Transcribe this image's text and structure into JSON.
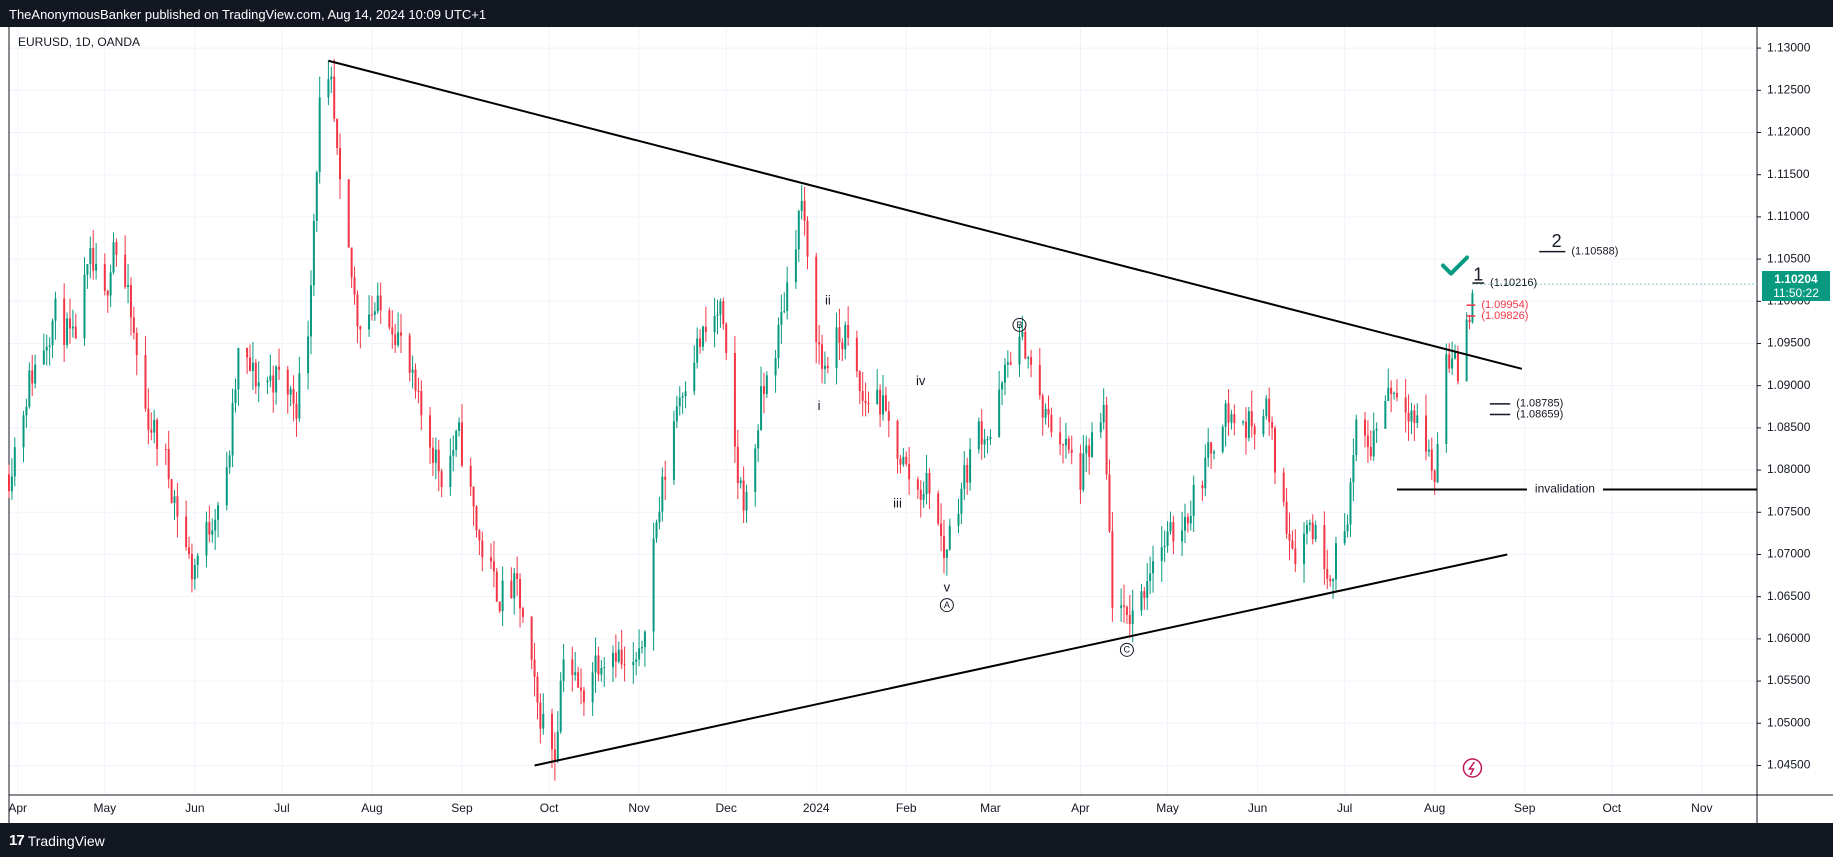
{
  "header": {
    "published_text": "TheAnonymousBanker published on TradingView.com, Aug 14, 2024 10:09 UTC+1"
  },
  "footer": {
    "logo_mark": "17",
    "logo_text": "TradingView"
  },
  "symbol_label": "EURUSD, 1D, OANDA",
  "price_badge": {
    "price": "1.10204",
    "countdown": "11:50:22"
  },
  "colors": {
    "up": "#089981",
    "down": "#f23645",
    "frame": "#131722",
    "grid": "#f0f3fa",
    "axis_text": "#131722",
    "red_label": "#f23645"
  },
  "chart_data": {
    "type": "candlestick",
    "title": "EURUSD, 1D, OANDA",
    "xlabel": "",
    "ylabel": "",
    "grid": true,
    "y_axis_position": "right",
    "ylim": [
      1.0415,
      1.1325
    ],
    "x_range": [
      "2023-03-29",
      "2024-11-20"
    ],
    "yticks": [
      "1.13000",
      "1.12500",
      "1.12000",
      "1.11500",
      "1.11000",
      "1.10500",
      "1.10000",
      "1.09500",
      "1.09000",
      "1.08500",
      "1.08000",
      "1.07500",
      "1.07000",
      "1.06500",
      "1.06000",
      "1.05500",
      "1.05000",
      "1.04500"
    ],
    "xticks": [
      {
        "date": "2023-04-01",
        "label": "Apr"
      },
      {
        "date": "2023-05-01",
        "label": "May"
      },
      {
        "date": "2023-06-01",
        "label": "Jun"
      },
      {
        "date": "2023-07-01",
        "label": "Jul"
      },
      {
        "date": "2023-08-01",
        "label": "Aug"
      },
      {
        "date": "2023-09-01",
        "label": "Sep"
      },
      {
        "date": "2023-10-01",
        "label": "Oct"
      },
      {
        "date": "2023-11-01",
        "label": "Nov"
      },
      {
        "date": "2023-12-01",
        "label": "Dec"
      },
      {
        "date": "2024-01-01",
        "label": "2024"
      },
      {
        "date": "2024-02-01",
        "label": "Feb"
      },
      {
        "date": "2024-03-01",
        "label": "Mar"
      },
      {
        "date": "2024-04-01",
        "label": "Apr"
      },
      {
        "date": "2024-05-01",
        "label": "May"
      },
      {
        "date": "2024-06-01",
        "label": "Jun"
      },
      {
        "date": "2024-07-01",
        "label": "Jul"
      },
      {
        "date": "2024-08-01",
        "label": "Aug"
      },
      {
        "date": "2024-09-01",
        "label": "Sep"
      },
      {
        "date": "2024-10-01",
        "label": "Oct"
      },
      {
        "date": "2024-11-01",
        "label": "Nov"
      }
    ],
    "close_path": [
      [
        "2023-03-29",
        1.0795
      ],
      [
        "2023-04-05",
        1.0905
      ],
      [
        "2023-04-14",
        1.0985
      ],
      [
        "2023-04-20",
        1.095
      ],
      [
        "2023-04-26",
        1.1045
      ],
      [
        "2023-05-01",
        1.1
      ],
      [
        "2023-05-04",
        1.1075
      ],
      [
        "2023-05-09",
        1.1
      ],
      [
        "2023-05-15",
        1.087
      ],
      [
        "2023-05-22",
        1.081
      ],
      [
        "2023-05-31",
        1.068
      ],
      [
        "2023-06-06",
        1.0735
      ],
      [
        "2023-06-12",
        1.079
      ],
      [
        "2023-06-16",
        1.0935
      ],
      [
        "2023-06-23",
        1.0905
      ],
      [
        "2023-06-30",
        1.091
      ],
      [
        "2023-07-06",
        1.088
      ],
      [
        "2023-07-10",
        1.097
      ],
      [
        "2023-07-14",
        1.123
      ],
      [
        "2023-07-18",
        1.125
      ],
      [
        "2023-07-21",
        1.1125
      ],
      [
        "2023-07-27",
        1.098
      ],
      [
        "2023-08-01",
        1.099
      ],
      [
        "2023-08-07",
        1.0985
      ],
      [
        "2023-08-11",
        1.095
      ],
      [
        "2023-08-17",
        1.0875
      ],
      [
        "2023-08-25",
        1.0795
      ],
      [
        "2023-08-31",
        1.084
      ],
      [
        "2023-09-07",
        1.0715
      ],
      [
        "2023-09-14",
        1.065
      ],
      [
        "2023-09-20",
        1.066
      ],
      [
        "2023-09-27",
        1.052
      ],
      [
        "2023-10-03",
        1.0465
      ],
      [
        "2023-10-06",
        1.059
      ],
      [
        "2023-10-12",
        1.053
      ],
      [
        "2023-10-17",
        1.0575
      ],
      [
        "2023-10-24",
        1.059
      ],
      [
        "2023-10-27",
        1.056
      ],
      [
        "2023-11-01",
        1.057
      ],
      [
        "2023-11-06",
        1.0715
      ],
      [
        "2023-11-14",
        1.088
      ],
      [
        "2023-11-20",
        1.094
      ],
      [
        "2023-11-29",
        1.099
      ],
      [
        "2023-12-05",
        1.079
      ],
      [
        "2023-12-08",
        1.076
      ],
      [
        "2023-12-13",
        1.088
      ],
      [
        "2023-12-19",
        1.096
      ],
      [
        "2023-12-27",
        1.112
      ],
      [
        "2023-12-29",
        1.104
      ],
      [
        "2024-01-03",
        1.092
      ],
      [
        "2024-01-08",
        1.095
      ],
      [
        "2024-01-11",
        1.096
      ],
      [
        "2024-01-17",
        1.088
      ],
      [
        "2024-01-22",
        1.089
      ],
      [
        "2024-01-26",
        1.085
      ],
      [
        "2024-02-01",
        1.08
      ],
      [
        "2024-02-05",
        1.0775
      ],
      [
        "2024-02-09",
        1.0785
      ],
      [
        "2024-02-14",
        1.07
      ],
      [
        "2024-02-20",
        1.078
      ],
      [
        "2024-02-26",
        1.085
      ],
      [
        "2024-03-01",
        1.084
      ],
      [
        "2024-03-08",
        1.094
      ],
      [
        "2024-03-13",
        1.095
      ],
      [
        "2024-03-19",
        1.0865
      ],
      [
        "2024-03-25",
        1.084
      ],
      [
        "2024-04-01",
        1.079
      ],
      [
        "2024-04-05",
        1.0835
      ],
      [
        "2024-04-09",
        1.086
      ],
      [
        "2024-04-12",
        1.065
      ],
      [
        "2024-04-16",
        1.062
      ],
      [
        "2024-04-22",
        1.065
      ],
      [
        "2024-04-26",
        1.07
      ],
      [
        "2024-05-01",
        1.0715
      ],
      [
        "2024-05-08",
        1.075
      ],
      [
        "2024-05-15",
        1.0815
      ],
      [
        "2024-05-20",
        1.087
      ],
      [
        "2024-05-28",
        1.085
      ],
      [
        "2024-06-04",
        1.0875
      ],
      [
        "2024-06-10",
        1.075
      ],
      [
        "2024-06-14",
        1.0705
      ],
      [
        "2024-06-19",
        1.074
      ],
      [
        "2024-06-26",
        1.068
      ],
      [
        "2024-07-01",
        1.0725
      ],
      [
        "2024-07-05",
        1.084
      ],
      [
        "2024-07-10",
        1.083
      ],
      [
        "2024-07-16",
        1.09
      ],
      [
        "2024-07-22",
        1.0885
      ],
      [
        "2024-07-29",
        1.083
      ],
      [
        "2024-08-01",
        1.079
      ],
      [
        "2024-08-05",
        1.0945
      ],
      [
        "2024-08-09",
        1.0915
      ],
      [
        "2024-08-13",
        1.099
      ],
      [
        "2024-08-14",
        1.102
      ]
    ],
    "annotations": {
      "triangle_upper": [
        [
          "2023-07-17",
          1.1285
        ],
        [
          "2024-08-31",
          1.092
        ]
      ],
      "triangle_lower": [
        [
          "2023-09-26",
          1.045
        ],
        [
          "2024-08-26",
          1.07
        ]
      ],
      "invalidation": {
        "label": "invalidation",
        "price": 1.0777,
        "from": "2024-07-19",
        "to": "2024-11-20"
      },
      "wave_labels": [
        {
          "label": "i",
          "date": "2024-01-02",
          "price": 1.0875,
          "color": "#131722"
        },
        {
          "label": "ii",
          "date": "2024-01-05",
          "price": 1.1,
          "color": "#131722"
        },
        {
          "label": "iii",
          "date": "2024-01-29",
          "price": 1.076,
          "color": "#131722"
        },
        {
          "label": "iv",
          "date": "2024-02-06",
          "price": 1.0905,
          "color": "#131722"
        },
        {
          "label": "v",
          "date": "2024-02-15",
          "price": 1.066,
          "color": "#131722"
        },
        {
          "label": "A",
          "date": "2024-02-15",
          "price": 1.064,
          "color": "#131722",
          "circled": true
        },
        {
          "label": "B",
          "date": "2024-03-11",
          "price": 1.0972,
          "color": "#131722",
          "circled": true
        },
        {
          "label": "C",
          "date": "2024-04-17",
          "price": 1.0587,
          "color": "#131722",
          "circled": true
        },
        {
          "label": "1",
          "date": "2024-08-16",
          "price": 1.103,
          "color": "#131722"
        },
        {
          "label": "2",
          "date": "2024-09-12",
          "price": 1.107,
          "color": "#131722"
        }
      ],
      "levels": [
        {
          "label": "(1.10216)",
          "price": 1.10216,
          "from": "2024-08-14",
          "to": "2024-08-18",
          "color": "#131722"
        },
        {
          "label": "(1.10588)",
          "price": 1.10588,
          "from": "2024-09-06",
          "to": "2024-09-15",
          "color": "#131722"
        },
        {
          "label": "(1.09954)",
          "price": 1.09954,
          "from": "2024-08-12",
          "to": "2024-08-15",
          "color": "#f23645"
        },
        {
          "label": "(1.09826)",
          "price": 1.09826,
          "from": "2024-08-12",
          "to": "2024-08-15",
          "color": "#f23645"
        },
        {
          "label": "(1.08785)",
          "price": 1.08785,
          "from": "2024-08-20",
          "to": "2024-08-27",
          "color": "#131722"
        },
        {
          "label": "(1.08659)",
          "price": 1.08659,
          "from": "2024-08-20",
          "to": "2024-08-27",
          "color": "#131722"
        }
      ],
      "checkmark": {
        "date": "2024-08-08",
        "price": 1.104,
        "color": "#089981"
      }
    }
  }
}
